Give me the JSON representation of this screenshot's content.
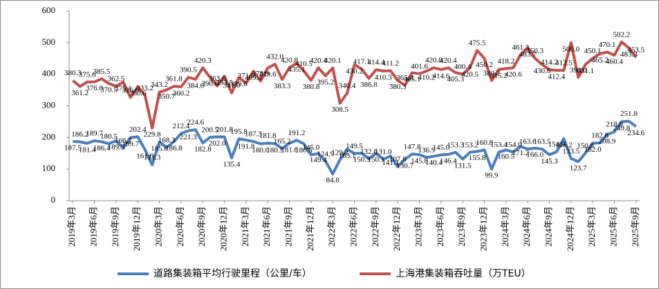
{
  "chart_data": {
    "type": "line",
    "categories": [
      "2019年3月",
      null,
      null,
      "2019年6月",
      null,
      null,
      "2019年9月",
      null,
      null,
      "2019年12月",
      null,
      null,
      "2020年3月",
      null,
      null,
      "2020年6月",
      null,
      null,
      "2020年9月",
      null,
      null,
      "2020年12月",
      null,
      null,
      "2021年3月",
      null,
      null,
      "2021年6月",
      null,
      null,
      "2021年9月",
      null,
      null,
      "2021年12月",
      null,
      null,
      "2022年3月",
      null,
      null,
      "2022年6月",
      null,
      null,
      "2022年9月",
      null,
      null,
      "2022年12月",
      null,
      null,
      "2023年3月",
      null,
      null,
      "2023年6月",
      null,
      null,
      "2023年9月",
      null,
      null,
      "2023年12月",
      null,
      null,
      "2024年3月",
      null,
      null,
      "2024年6月",
      null,
      null,
      "2024年9月",
      null,
      null,
      "2024年12月",
      null,
      null,
      "2025年3月",
      null,
      null,
      "2025年6月",
      null,
      null,
      "2025年9月"
    ],
    "series": [
      {
        "name": "道路集装箱平均行驶里程（公里/车）",
        "color": "#4a7ebb",
        "values": [
          187.5,
          186.2,
          181.4,
          189.7,
          186.4,
          180.5,
          189.5,
          166.7,
          199.7,
          202.4,
          161.6,
          113.3,
          185.6,
          168.3,
          186.8,
          212.4,
          221.3,
          224.6,
          182.8,
          200.5,
          202.0,
          201.8,
          135.4,
          195.8,
          191.8,
          187.3,
          180.0,
          181.8,
          180.5,
          165.2,
          181.6,
          191.2,
          180.5,
          145.0,
          149.4,
          124.9,
          84.8,
          129.2,
          163.1,
          149.5,
          150.3,
          132.6,
          150.1,
          131.0,
          141.1,
          107.8,
          130.7,
          147.8,
          145.8,
          136.9,
          140.4,
          145.0,
          146.4,
          153.3,
          131.5,
          153.2,
          155.8,
          160.8,
          99.9,
          153.4,
          160.5,
          154.0,
          171.2,
          163.6,
          166.0,
          163.5,
          145.3,
          154.9,
          196.2,
          133.5,
          123.7,
          150.8,
          182.0,
          182.8,
          208.9,
          218.0,
          249.8,
          251.8,
          234.6
        ],
        "value_labels": [
          "187.5",
          "186.2",
          "181.4",
          "189.7",
          "186.4",
          "180.5",
          "189.5",
          "166.7",
          "199.7",
          "202.4",
          "161.6",
          "113.3",
          "185.6",
          "168.3",
          "186.8",
          "212.4",
          "221.3",
          "224.6",
          "182.8",
          "200.5",
          "202.0",
          "201.8",
          "135.4",
          "195.8",
          "191.8",
          "187.3",
          "180.0",
          "181.8",
          "180.5",
          "165.2",
          "181.6",
          "191.2",
          "180.5",
          "145.0",
          "149.4",
          "124.9",
          "84.8",
          "129.2",
          "163.1",
          "149.5",
          "150.3",
          "132.6",
          "150.1",
          "131.0",
          "141.1",
          "107.8",
          "130.7",
          "147.8",
          "145.8",
          "136.9",
          "140.4",
          "145.0",
          "146.4",
          "153.3",
          "131.5",
          "153.2",
          "155.8",
          "160.8",
          "99.9",
          "153.4",
          "160.5",
          "154.0",
          "171.2",
          "163.6",
          "166.0",
          "163.5",
          "145.3",
          "154.9",
          "196.2",
          "133.5",
          "123.7",
          "150.8",
          "182.0",
          "182.8",
          "208.9",
          "218.0",
          "249.8",
          "251.8",
          "234.6"
        ]
      },
      {
        "name": "上海港集装箱吞吐量（万TEU）",
        "color": "#c0504d",
        "values": [
          380.3,
          361.2,
          375.6,
          376.0,
          385.5,
          370.5,
          362.5,
          375.1,
          326.6,
          360.6,
          333.2,
          229.8,
          343.2,
          350.7,
          361.8,
          360.2,
          390.5,
          384.0,
          420.3,
          390.6,
          363.6,
          393.5,
          341.0,
          389.6,
          371.9,
          409.4,
          378.9,
          419.6,
          432.0,
          383.3,
          420.8,
          435.1,
          410.5,
          380.8,
          420.4,
          395.2,
          420.1,
          308.5,
          340.4,
          430.2,
          417.1,
          386.8,
          414.4,
          410.3,
          411.2,
          380.3,
          365.4,
          405.1,
          401.6,
          410.2,
          420.8,
          414.6,
          420.4,
          405.3,
          400.4,
          420.5,
          475.5,
          450.2,
          380.2,
          415.2,
          418.2,
          420.6,
          461.3,
          483.7,
          450.3,
          430.6,
          414.2,
          412.4,
          412.5,
          500.0,
          390.0,
          431.1,
          450.1,
          465.2,
          470.1,
          460.4,
          502.2,
          483.3,
          453.5
        ],
        "value_labels": [
          "380.3",
          "361.2",
          "375.6",
          "376.0",
          "385.5",
          "370.5",
          "362.5",
          "375.1",
          "326.6",
          "360.6",
          "333.2",
          "229.8",
          "343.2",
          "350.7",
          "361.8",
          "360.2",
          "390.5",
          "384.0",
          "420.3",
          "390.6",
          "363.6",
          "393.5",
          "341.0",
          "389.6",
          "371.9",
          "409.4",
          "378.9",
          "419.6",
          "432.0",
          "383.3",
          "420.8",
          "435.1",
          "410.5",
          "380.8",
          "420.4",
          "395.2",
          "420.1",
          "308.5",
          "340.4",
          "430.2",
          "417.1",
          "386.8",
          "414.4",
          "410.3",
          "411.2",
          "380.3",
          "365.4",
          "405.1",
          "401.6",
          "410.2",
          "420.8",
          "414.6",
          "420.4",
          "405.3",
          "400.4",
          "420.5",
          "475.5",
          "450.2",
          "380.2",
          "415.2",
          "418.2",
          "420.6",
          "461.3",
          "483.7",
          "450.3",
          "430.6",
          "414.2",
          "412.4",
          "412.5",
          "500.0",
          "390.0",
          "431.1",
          "450.1",
          "465.2",
          "470.1",
          "460.4",
          "502.2",
          "483.3",
          "453.5"
        ]
      }
    ],
    "ylim": [
      0,
      600
    ],
    "yticks": [
      0,
      100,
      200,
      300,
      400,
      500,
      600
    ],
    "legend": "bottom"
  }
}
